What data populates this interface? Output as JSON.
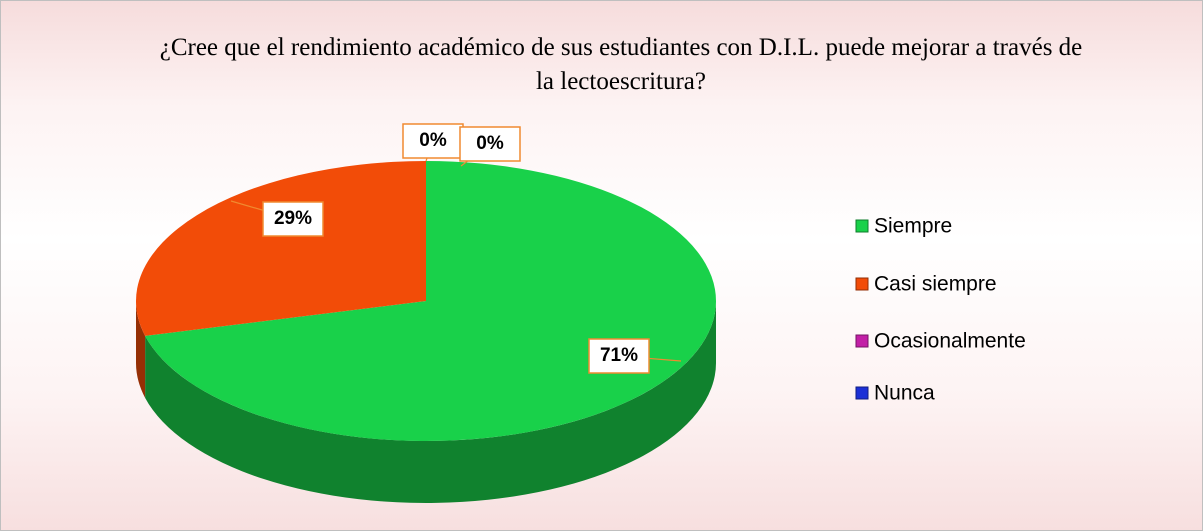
{
  "chart_data": {
    "type": "pie",
    "title": "¿Cree que el rendimiento académico de sus estudiantes con D.I.L. puede mejorar a través de la lectoescritura?",
    "categories": [
      "Siempre",
      "Casi siempre",
      "Ocasionalmente",
      "Nunca"
    ],
    "values": [
      71,
      29,
      0,
      0
    ],
    "value_labels": [
      "71%",
      "29%",
      "0%",
      "0%"
    ],
    "colors": [
      "#19d14a",
      "#f24c08",
      "#c21fa6",
      "#1b2fd6"
    ],
    "legend": "right"
  }
}
